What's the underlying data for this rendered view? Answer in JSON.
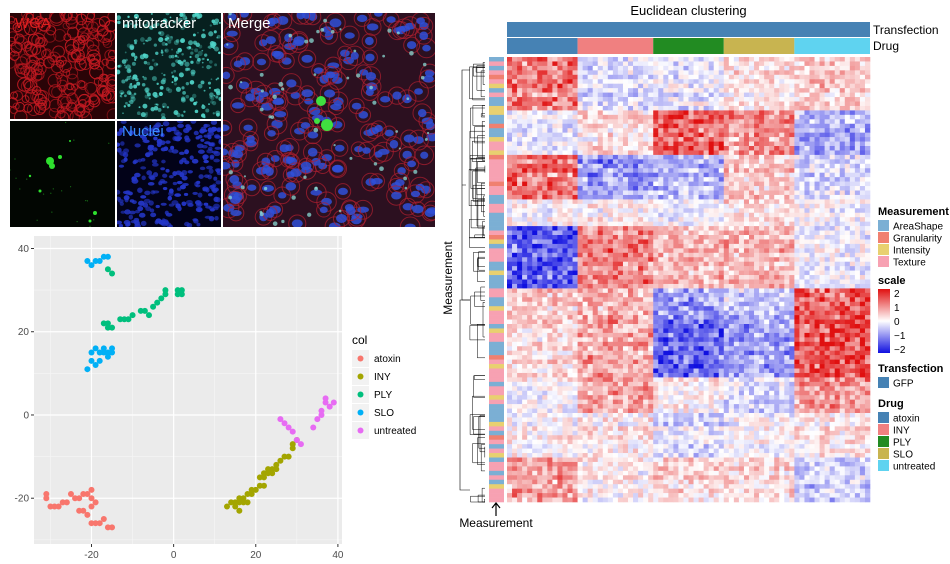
{
  "panels": {
    "wga": {
      "label": "WGA",
      "bg": "#2a0407",
      "fg": "#c21a22",
      "label_color": "#e02020"
    },
    "mito": {
      "label": "mitotracker",
      "bg": "#07201f",
      "fg": "#4fd3c7",
      "label_color": "#ffffff"
    },
    "gfp": {
      "label": "",
      "bg": "#020602",
      "fg": "#2ee02e"
    },
    "nuclei": {
      "label": "Nuclei",
      "bg": "#020218",
      "fg": "#2436c8",
      "label_color": "#3a8cff"
    },
    "merge": {
      "label": "Merge",
      "bg": "#2c1020",
      "label_color": "#ffffff"
    }
  },
  "chart_data": [
    {
      "type": "scatter",
      "title": "",
      "xlabel": "",
      "ylabel": "",
      "xlim": [
        -34,
        41
      ],
      "ylim": [
        -31,
        43
      ],
      "x_ticks": [
        -20,
        0,
        20,
        40
      ],
      "y_ticks": [
        -20,
        0,
        20,
        40
      ],
      "grid": true,
      "legend": {
        "title": "col",
        "placement": "right"
      },
      "series": [
        {
          "name": "atoxin",
          "color": "#F8766D",
          "points": [
            [
              -31,
              -19
            ],
            [
              -31,
              -20
            ],
            [
              -30,
              -22
            ],
            [
              -29,
              -22
            ],
            [
              -28,
              -22
            ],
            [
              -27,
              -21
            ],
            [
              -26,
              -21
            ],
            [
              -25,
              -19
            ],
            [
              -24,
              -20
            ],
            [
              -23,
              -20
            ],
            [
              -22,
              -19
            ],
            [
              -21,
              -19
            ],
            [
              -20,
              -18
            ],
            [
              -20,
              -20
            ],
            [
              -19,
              -21
            ],
            [
              -23,
              -23
            ],
            [
              -22,
              -23
            ],
            [
              -21,
              -24
            ],
            [
              -20,
              -26
            ],
            [
              -19,
              -26
            ],
            [
              -18,
              -26
            ],
            [
              -17,
              -25
            ],
            [
              -16,
              -27
            ],
            [
              -15,
              -27
            ],
            [
              -20,
              -22
            ]
          ]
        },
        {
          "name": "INY",
          "color": "#A3A500",
          "points": [
            [
              13,
              -22
            ],
            [
              14,
              -21
            ],
            [
              15,
              -21
            ],
            [
              15,
              -22
            ],
            [
              16,
              -23
            ],
            [
              16,
              -21
            ],
            [
              17,
              -21
            ],
            [
              17,
              -20
            ],
            [
              18,
              -19
            ],
            [
              19,
              -18
            ],
            [
              19,
              -19
            ],
            [
              20,
              -18
            ],
            [
              21,
              -17
            ],
            [
              21,
              -15
            ],
            [
              22,
              -15
            ],
            [
              22,
              -14
            ],
            [
              23,
              -13
            ],
            [
              23,
              -14
            ],
            [
              24,
              -13
            ],
            [
              24,
              -14
            ],
            [
              25,
              -12
            ],
            [
              25,
              -13
            ],
            [
              26,
              -11
            ],
            [
              27,
              -10
            ],
            [
              28,
              -10
            ],
            [
              29,
              -8
            ],
            [
              29,
              -7
            ],
            [
              30,
              -6
            ],
            [
              22,
              -17
            ],
            [
              18,
              -21
            ],
            [
              16,
              -20
            ]
          ]
        },
        {
          "name": "PLY",
          "color": "#00BF7D",
          "points": [
            [
              -17,
              22
            ],
            [
              -16,
              21
            ],
            [
              -16,
              22
            ],
            [
              -15,
              21
            ],
            [
              -13,
              23
            ],
            [
              -12,
              23
            ],
            [
              -11,
              23
            ],
            [
              -10,
              24
            ],
            [
              -8,
              25
            ],
            [
              -7,
              25
            ],
            [
              -6,
              24
            ],
            [
              -5,
              26
            ],
            [
              -4,
              27
            ],
            [
              -3,
              28
            ],
            [
              -2,
              29
            ],
            [
              -2,
              30
            ],
            [
              1,
              29
            ],
            [
              1,
              30
            ],
            [
              2,
              29
            ],
            [
              2,
              30
            ],
            [
              -15,
              34
            ],
            [
              -16,
              35
            ]
          ]
        },
        {
          "name": "SLO",
          "color": "#00B0F6",
          "points": [
            [
              -21,
              37
            ],
            [
              -20,
              36
            ],
            [
              -19,
              37
            ],
            [
              -18,
              37
            ],
            [
              -17,
              38
            ],
            [
              -16,
              38
            ],
            [
              -19,
              16
            ],
            [
              -18,
              15
            ],
            [
              -17,
              15
            ],
            [
              -16,
              14
            ],
            [
              -15,
              15
            ],
            [
              -15,
              16
            ],
            [
              -17,
              16
            ],
            [
              -18,
              13
            ],
            [
              -19,
              12
            ],
            [
              -20,
              13
            ],
            [
              -20,
              15
            ],
            [
              -21,
              11
            ],
            [
              -16,
              15
            ]
          ]
        },
        {
          "name": "untreated",
          "color": "#E76BF3",
          "points": [
            [
              26,
              -1
            ],
            [
              27,
              -2
            ],
            [
              28,
              -3
            ],
            [
              29,
              -4
            ],
            [
              30,
              -6
            ],
            [
              31,
              -7
            ],
            [
              34,
              -3
            ],
            [
              35,
              -1
            ],
            [
              36,
              0
            ],
            [
              36,
              1
            ],
            [
              37,
              3
            ],
            [
              37,
              4
            ],
            [
              38,
              2
            ],
            [
              39,
              3
            ]
          ]
        }
      ]
    },
    {
      "type": "heatmap",
      "title": "Euclidean clustering",
      "xlabel": "Measurement",
      "ylabel": "Measurement",
      "n_rows": 100,
      "n_cols": 72,
      "col_annotations": [
        {
          "name": "Transfection",
          "groups": [
            {
              "label": "GFP",
              "count": 72,
              "color": "#4682B4"
            }
          ]
        },
        {
          "name": "Drug",
          "groups": [
            {
              "label": "atoxin",
              "count": 14,
              "color": "#4682B4"
            },
            {
              "label": "INY",
              "count": 15,
              "color": "#F08080"
            },
            {
              "label": "PLY",
              "count": 14,
              "color": "#228B22"
            },
            {
              "label": "SLO",
              "count": 14,
              "color": "#C8B450"
            },
            {
              "label": "untreated",
              "count": 15,
              "color": "#5FD3F0"
            }
          ]
        }
      ],
      "row_annotation": {
        "name": "Measurement",
        "categories": [
          {
            "label": "AreaShape",
            "color": "#7BAFD4"
          },
          {
            "label": "Granularity",
            "color": "#F08070"
          },
          {
            "label": "Intensity",
            "color": "#E8D070"
          },
          {
            "label": "Texture",
            "color": "#F7A1B2"
          }
        ]
      },
      "scale": {
        "title": "scale",
        "ticks": [
          "2",
          "1",
          "0",
          "−1",
          "−2"
        ],
        "min": -2.5,
        "max": 2.5,
        "low_color": "#1010E0",
        "mid_color": "#FFFFFF",
        "high_color": "#E01010"
      },
      "legend": {
        "measurement_title": "Measurement",
        "transfection_title": "Transfection",
        "drug_title": "Drug"
      }
    }
  ]
}
